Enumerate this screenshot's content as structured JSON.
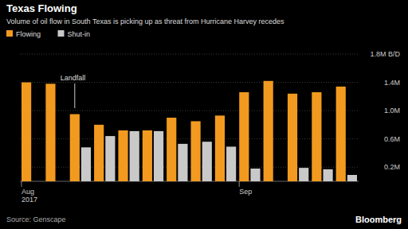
{
  "chart_data": {
    "type": "bar",
    "title": "Texas Flowing",
    "subtitle": "Volume of oil flow in South Texas is picking up as threat from Hurricane Harvey recedes",
    "categories": [
      "Aug 2017",
      null,
      null,
      null,
      null,
      null,
      null,
      null,
      null,
      "Sep",
      null,
      null,
      null,
      null
    ],
    "series": [
      {
        "name": "Flowing",
        "color": "#f29a1f",
        "values": [
          1.4,
          1.38,
          0.95,
          0.8,
          0.72,
          0.72,
          0.9,
          0.85,
          0.93,
          1.26,
          1.42,
          1.24,
          1.26,
          1.34
        ]
      },
      {
        "name": "Shut-in",
        "color": "#c9c9c9",
        "values": [
          0,
          0,
          0.48,
          0.64,
          0.71,
          0.71,
          0.53,
          0.56,
          0.49,
          0.18,
          0,
          0.19,
          0.17,
          0.09
        ]
      }
    ],
    "ylim": [
      0,
      1.8
    ],
    "yticks": [
      {
        "value": 0.2,
        "label": "0.2M"
      },
      {
        "value": 0.6,
        "label": "0.6M"
      },
      {
        "value": 1.0,
        "label": "1.0M"
      },
      {
        "value": 1.4,
        "label": "1.4M"
      },
      {
        "value": 1.8,
        "label": "1.8M B/D"
      }
    ],
    "grid": true,
    "legend": "top-left",
    "annotations": [
      {
        "text": "Landfall"
      }
    ],
    "source": "Source: Genscape",
    "credit": "Bloomberg"
  }
}
